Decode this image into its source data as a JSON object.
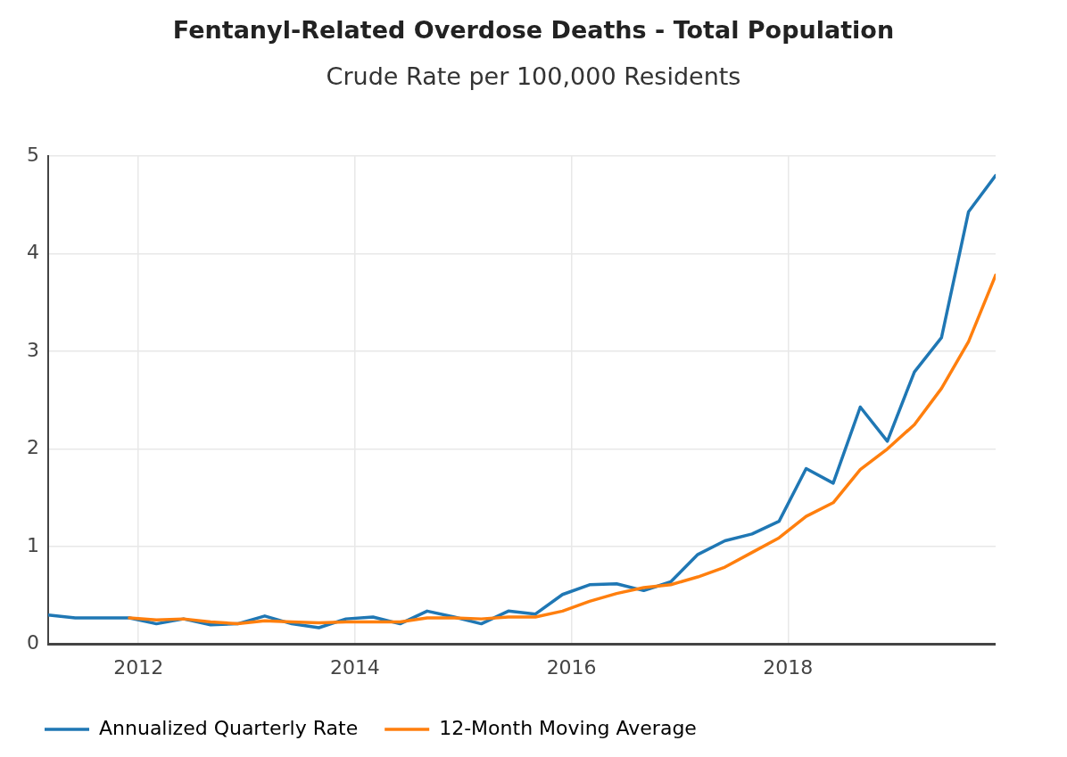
{
  "chart_data": {
    "type": "line",
    "title": "Fentanyl-Related Overdose Deaths - Total Population",
    "subtitle": "Crude Rate per 100,000 Residents",
    "x": [
      "2011-03",
      "2011-06",
      "2011-09",
      "2011-12",
      "2012-03",
      "2012-06",
      "2012-09",
      "2012-12",
      "2013-03",
      "2013-06",
      "2013-09",
      "2013-12",
      "2014-03",
      "2014-06",
      "2014-09",
      "2014-12",
      "2015-03",
      "2015-06",
      "2015-09",
      "2015-12",
      "2016-03",
      "2016-06",
      "2016-09",
      "2016-12",
      "2017-03",
      "2017-06",
      "2017-09",
      "2017-12",
      "2018-03",
      "2018-06",
      "2018-09",
      "2018-12",
      "2019-03",
      "2019-06",
      "2019-09",
      "2019-12"
    ],
    "series": [
      {
        "name": "Annualized Quarterly Rate",
        "color": "#1f77b4",
        "values": [
          0.3,
          0.27,
          0.27,
          0.27,
          0.21,
          0.26,
          0.2,
          0.21,
          0.29,
          0.21,
          0.17,
          0.26,
          0.28,
          0.21,
          0.34,
          0.28,
          0.21,
          0.34,
          0.31,
          0.51,
          0.61,
          0.62,
          0.55,
          0.64,
          0.92,
          1.06,
          1.13,
          1.26,
          1.8,
          1.65,
          2.43,
          2.08,
          2.79,
          3.14,
          4.43,
          4.8
        ]
      },
      {
        "name": "12-Month Moving Average",
        "color": "#ff7f0e",
        "values": [
          null,
          null,
          null,
          0.27,
          0.25,
          0.26,
          0.23,
          0.21,
          0.24,
          0.23,
          0.22,
          0.23,
          0.23,
          0.23,
          0.27,
          0.27,
          0.26,
          0.28,
          0.28,
          0.34,
          0.44,
          0.52,
          0.58,
          0.61,
          0.69,
          0.79,
          0.94,
          1.09,
          1.31,
          1.45,
          1.79,
          2.0,
          2.25,
          2.62,
          3.1,
          3.78
        ]
      }
    ],
    "xlim": [
      "2011-03",
      "2019-12"
    ],
    "xticks": [
      {
        "value": "2012",
        "label": "2012"
      },
      {
        "value": "2014",
        "label": "2014"
      },
      {
        "value": "2016",
        "label": "2016"
      },
      {
        "value": "2018",
        "label": "2018"
      }
    ],
    "ylim": [
      0,
      5
    ],
    "yticks": [
      0,
      1,
      2,
      3,
      4,
      5
    ],
    "grid": true,
    "legend": "bottom",
    "marker": "none",
    "line_style": "solid"
  }
}
